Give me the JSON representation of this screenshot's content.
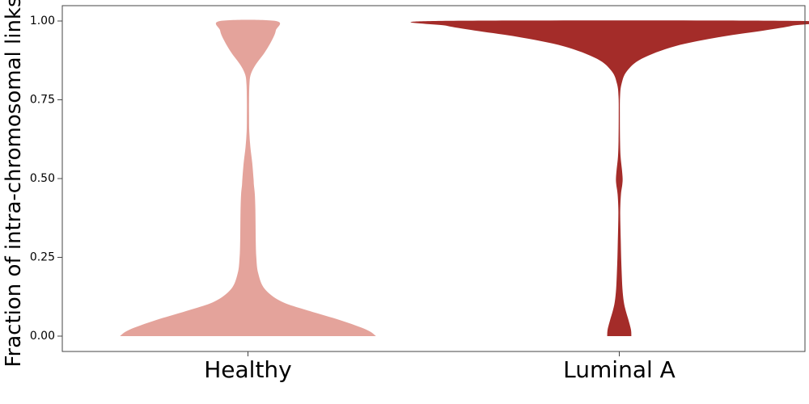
{
  "chart_data": {
    "type": "violin",
    "title": "",
    "xlabel": "",
    "ylabel": "Fraction of intra-chromosomal links",
    "categories": [
      "Healthy",
      "Luminal A"
    ],
    "ylim": [
      -0.05,
      1.05
    ],
    "yticks": [
      {
        "value": 0.0,
        "label": "0.00"
      },
      {
        "value": 0.25,
        "label": "0.25"
      },
      {
        "value": 0.5,
        "label": "0.50"
      },
      {
        "value": 0.75,
        "label": "0.75"
      },
      {
        "value": 1.0,
        "label": "1.00"
      }
    ],
    "grid": false,
    "legend": "none",
    "series": [
      {
        "category": "Healthy",
        "color": "#e4a39b",
        "density_profile": [
          [
            0.0,
            0.69
          ],
          [
            0.02,
            0.64
          ],
          [
            0.05,
            0.5
          ],
          [
            0.08,
            0.33
          ],
          [
            0.11,
            0.18
          ],
          [
            0.15,
            0.09
          ],
          [
            0.2,
            0.055
          ],
          [
            0.25,
            0.045
          ],
          [
            0.3,
            0.042
          ],
          [
            0.35,
            0.041
          ],
          [
            0.4,
            0.04
          ],
          [
            0.45,
            0.037
          ],
          [
            0.48,
            0.032
          ],
          [
            0.5,
            0.03
          ],
          [
            0.55,
            0.023
          ],
          [
            0.6,
            0.013
          ],
          [
            0.65,
            0.007
          ],
          [
            0.7,
            0.006
          ],
          [
            0.75,
            0.006
          ],
          [
            0.8,
            0.008
          ],
          [
            0.83,
            0.015
          ],
          [
            0.86,
            0.04
          ],
          [
            0.9,
            0.09
          ],
          [
            0.94,
            0.13
          ],
          [
            0.97,
            0.15
          ],
          [
            1.0,
            0.15
          ]
        ]
      },
      {
        "category": "Luminal A",
        "color": "#a42c29",
        "density_profile": [
          [
            0.0,
            0.065
          ],
          [
            0.02,
            0.063
          ],
          [
            0.05,
            0.05
          ],
          [
            0.08,
            0.035
          ],
          [
            0.11,
            0.024
          ],
          [
            0.15,
            0.017
          ],
          [
            0.2,
            0.013
          ],
          [
            0.25,
            0.01
          ],
          [
            0.3,
            0.008
          ],
          [
            0.35,
            0.006
          ],
          [
            0.4,
            0.005
          ],
          [
            0.45,
            0.009
          ],
          [
            0.48,
            0.016
          ],
          [
            0.5,
            0.018
          ],
          [
            0.53,
            0.014
          ],
          [
            0.57,
            0.007
          ],
          [
            0.62,
            0.004
          ],
          [
            0.7,
            0.003
          ],
          [
            0.76,
            0.004
          ],
          [
            0.8,
            0.012
          ],
          [
            0.84,
            0.04
          ],
          [
            0.88,
            0.12
          ],
          [
            0.92,
            0.3
          ],
          [
            0.95,
            0.55
          ],
          [
            0.97,
            0.78
          ],
          [
            0.985,
            0.93
          ],
          [
            1.0,
            0.99
          ]
        ]
      }
    ]
  }
}
